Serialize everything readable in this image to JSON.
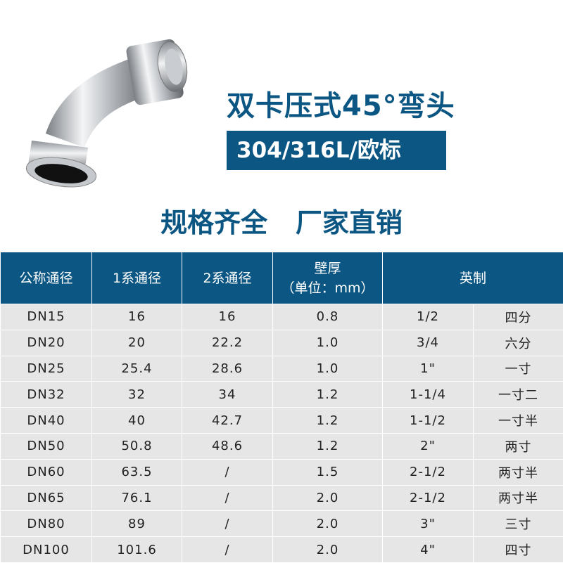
{
  "product": {
    "title": "双卡压式45°弯头",
    "badge": "304/316L/欧标",
    "slogan": "规格齐全   厂家直销",
    "accent_color": "#0b5682"
  },
  "table": {
    "headers": {
      "nominal": "公称通径",
      "series1": "1系通径",
      "series2": "2系通径",
      "wall_line1": "壁厚",
      "wall_line2": "（单位：mm）",
      "imperial": "英制"
    },
    "rows": [
      [
        "DN15",
        "16",
        "16",
        "0.8",
        "1/2",
        "四分"
      ],
      [
        "DN20",
        "20",
        "22.2",
        "1.0",
        "3/4",
        "六分"
      ],
      [
        "DN25",
        "25.4",
        "28.6",
        "1.0",
        "1\"",
        "一寸"
      ],
      [
        "DN32",
        "32",
        "34",
        "1.2",
        "1-1/4",
        "一寸二"
      ],
      [
        "DN40",
        "40",
        "42.7",
        "1.2",
        "1-1/2",
        "一寸半"
      ],
      [
        "DN50",
        "50.8",
        "48.6",
        "1.2",
        "2\"",
        "两寸"
      ],
      [
        "DN60",
        "63.5",
        "/",
        "1.5",
        "2-1/2",
        "两寸半"
      ],
      [
        "DN65",
        "76.1",
        "/",
        "2.0",
        "2-1/2",
        "两寸半"
      ],
      [
        "DN80",
        "89",
        "/",
        "2.0",
        "3\"",
        "三寸"
      ],
      [
        "DN100",
        "101.6",
        "/",
        "2.0",
        "4\"",
        "四寸"
      ]
    ]
  }
}
